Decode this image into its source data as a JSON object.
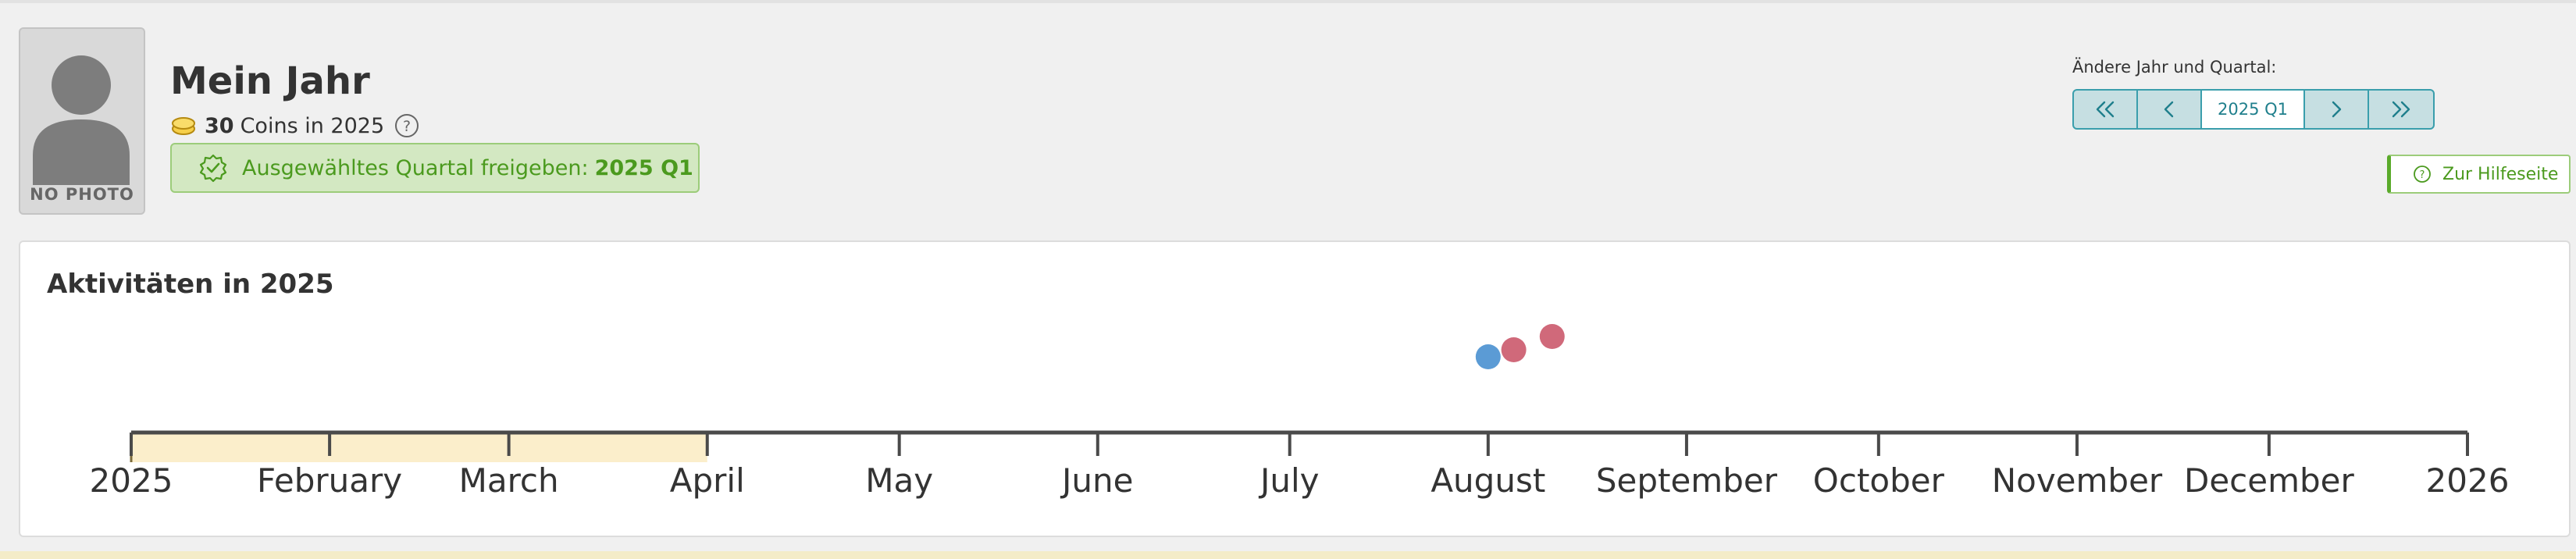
{
  "profile": {
    "no_photo_label": "NO PHOTO",
    "title": "Mein Jahr",
    "coins_count": "30",
    "coins_text": "Coins in 2025",
    "coin_icon": "coin-stack-icon",
    "help_icon": "question-circle-icon"
  },
  "share": {
    "label": "Ausgewähltes Quartal freigeben:",
    "value": "2025 Q1",
    "icon": "badge-check-icon"
  },
  "quarter_nav": {
    "label": "Ändere Jahr und Quartal:",
    "value": "2025 Q1",
    "buttons": [
      "double-chevron-left-icon",
      "chevron-left-icon",
      "chevron-right-icon",
      "double-chevron-right-icon"
    ]
  },
  "help_link": {
    "label": "Zur Hilfeseite",
    "icon": "question-circle-icon"
  },
  "activities": {
    "title": "Aktivitäten in 2025",
    "ticks": [
      "2025",
      "February",
      "March",
      "April",
      "May",
      "June",
      "July",
      "August",
      "September",
      "October",
      "November",
      "December",
      "2026"
    ],
    "selected_range": [
      "2025",
      "April"
    ],
    "colors": {
      "axis": "#4a4a4a",
      "selected": "#fbeecb",
      "selected_edge": "#7a6a3a"
    }
  },
  "chart_data": {
    "type": "scatter",
    "title": "Aktivitäten in 2025",
    "x_axis": "time",
    "xlim": [
      "2025-01-01",
      "2026-01-01"
    ],
    "highlight_range": [
      "2025-01-01",
      "2025-04-01"
    ],
    "points": [
      {
        "date": "2025-08-01",
        "color": "#5b9bd5"
      },
      {
        "date": "2025-08-05",
        "color": "#d0697a"
      },
      {
        "date": "2025-08-11",
        "color": "#d0697a"
      }
    ]
  }
}
